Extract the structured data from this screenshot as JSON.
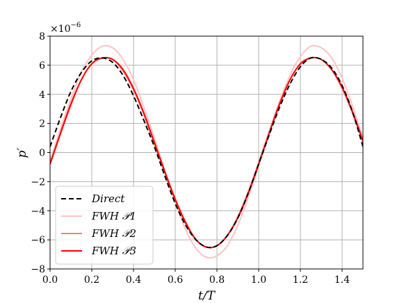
{
  "chart_data": {
    "type": "line",
    "title": "",
    "xlabel": "t/T",
    "ylabel": "p′",
    "y_scale_label": "×10",
    "y_scale_exponent": "−6",
    "xlim": [
      0.0,
      1.5
    ],
    "ylim": [
      -8,
      8
    ],
    "x_ticks": [
      0.0,
      0.2,
      0.4,
      0.6,
      0.8,
      1.0,
      1.2,
      1.4
    ],
    "x_tick_labels": [
      "0.0",
      "0.2",
      "0.4",
      "0.6",
      "0.8",
      "1.0",
      "1.2",
      "1.4"
    ],
    "y_ticks": [
      -8,
      -6,
      -4,
      -2,
      0,
      2,
      4,
      6,
      8
    ],
    "y_tick_labels": [
      "−8",
      "−6",
      "−4",
      "−2",
      "0",
      "2",
      "4",
      "6",
      "8"
    ],
    "grid": true,
    "legend_position": "lower-left",
    "series": [
      {
        "name": "Direct",
        "color": "#000000",
        "dash": "dashed",
        "x": [
          0.0,
          0.05,
          0.1,
          0.15,
          0.2,
          0.25,
          0.3,
          0.35,
          0.4,
          0.45,
          0.5,
          0.55,
          0.6,
          0.65,
          0.7,
          0.75,
          0.8,
          0.85,
          0.9,
          0.95,
          1.0,
          1.05,
          1.1,
          1.15,
          1.2,
          1.25,
          1.3,
          1.35,
          1.4,
          1.45,
          1.5
        ],
        "y": [
          0.4,
          2.4,
          4.2,
          5.5,
          6.3,
          6.5,
          6.2,
          5.3,
          3.9,
          2.2,
          0.4,
          -1.6,
          -3.5,
          -5.0,
          -6.0,
          -6.5,
          -6.4,
          -5.7,
          -4.5,
          -2.8,
          -0.8,
          1.2,
          3.1,
          4.7,
          5.9,
          6.5,
          6.4,
          5.8,
          4.6,
          2.8,
          0.4
        ]
      },
      {
        "name": "FWH 𝒫1",
        "color": "#ffc4c4",
        "dash": "solid",
        "x": [
          0.0,
          0.05,
          0.1,
          0.15,
          0.2,
          0.25,
          0.3,
          0.35,
          0.4,
          0.45,
          0.5,
          0.55,
          0.6,
          0.65,
          0.7,
          0.75,
          0.8,
          0.85,
          0.9,
          0.95,
          1.0,
          1.05,
          1.1,
          1.15,
          1.2,
          1.25,
          1.3,
          1.35,
          1.4,
          1.45,
          1.5
        ],
        "y": [
          -0.6,
          1.6,
          3.7,
          5.5,
          6.7,
          7.3,
          7.2,
          6.4,
          5.0,
          3.1,
          1.0,
          -1.3,
          -3.4,
          -5.3,
          -6.6,
          -7.2,
          -7.1,
          -6.4,
          -5.0,
          -3.1,
          -0.9,
          1.4,
          3.5,
          5.3,
          6.6,
          7.3,
          7.2,
          6.5,
          5.1,
          3.2,
          1.0
        ]
      },
      {
        "name": "FWH 𝒫2",
        "color": "#f08080",
        "dash": "solid",
        "x": [
          0.0,
          0.05,
          0.1,
          0.15,
          0.2,
          0.25,
          0.3,
          0.35,
          0.4,
          0.45,
          0.5,
          0.55,
          0.6,
          0.65,
          0.7,
          0.75,
          0.8,
          0.85,
          0.9,
          0.95,
          1.0,
          1.05,
          1.1,
          1.15,
          1.2,
          1.25,
          1.3,
          1.35,
          1.4,
          1.45,
          1.5
        ],
        "y": [
          -0.7,
          1.4,
          3.4,
          5.0,
          6.1,
          6.5,
          6.4,
          5.6,
          4.3,
          2.6,
          0.6,
          -1.4,
          -3.3,
          -4.9,
          -6.0,
          -6.5,
          -6.4,
          -5.7,
          -4.4,
          -2.7,
          -0.7,
          1.4,
          3.4,
          5.0,
          6.1,
          6.5,
          6.4,
          5.7,
          4.4,
          2.7,
          0.7
        ]
      },
      {
        "name": "FWH 𝒫3",
        "color": "#ff0000",
        "dash": "solid",
        "x": [
          0.0,
          0.05,
          0.1,
          0.15,
          0.2,
          0.25,
          0.3,
          0.35,
          0.4,
          0.45,
          0.5,
          0.55,
          0.6,
          0.65,
          0.7,
          0.75,
          0.8,
          0.85,
          0.9,
          0.95,
          1.0,
          1.05,
          1.1,
          1.15,
          1.2,
          1.25,
          1.3,
          1.35,
          1.4,
          1.45,
          1.5
        ],
        "y": [
          -0.8,
          1.3,
          3.3,
          5.0,
          6.1,
          6.5,
          6.4,
          5.7,
          4.4,
          2.7,
          0.7,
          -1.3,
          -3.2,
          -4.8,
          -6.0,
          -6.5,
          -6.4,
          -5.7,
          -4.5,
          -2.8,
          -0.8,
          1.3,
          3.3,
          5.0,
          6.1,
          6.5,
          6.4,
          5.7,
          4.5,
          2.8,
          0.8
        ]
      }
    ]
  }
}
